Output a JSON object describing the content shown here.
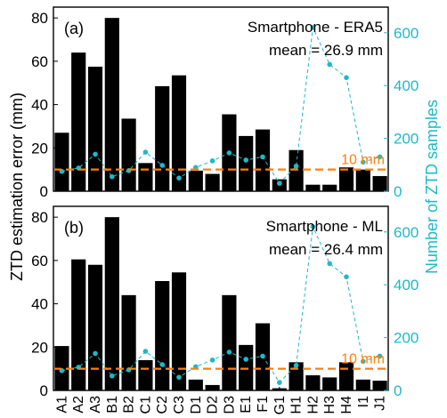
{
  "colors": {
    "bar": "#000000",
    "samples": "#20b8c8",
    "reference": "#ff7f0e"
  },
  "y_label": "ZTD estimation error (mm)",
  "y2_label": "Number of ZTD samples",
  "chart_data": [
    {
      "type": "bar",
      "panel_label": "(a)",
      "legend_title": "Smartphone - ERA5",
      "mean_text": "mean = 26.9 mm",
      "reference_label": "10 mm",
      "reference_value": 10,
      "categories": [
        "A1",
        "A2",
        "A3",
        "B1",
        "B2",
        "C1",
        "C2",
        "C3",
        "D1",
        "D2",
        "D3",
        "E1",
        "F1",
        "G1",
        "H1",
        "H2",
        "H3",
        "H4",
        "I1",
        "J1"
      ],
      "series": [
        {
          "axis": "left",
          "values": [
            27,
            64,
            57.5,
            80,
            33.5,
            13,
            48.5,
            53.5,
            9.5,
            8,
            35.5,
            25.5,
            28.5,
            5.5,
            19,
            3,
            3,
            11,
            10,
            7
          ]
        },
        {
          "axis": "right",
          "values": [
            75,
            88,
            140,
            55,
            78,
            148,
            98,
            50,
            90,
            115,
            145,
            118,
            130,
            30,
            95,
            620,
            480,
            430,
            110,
            130
          ]
        }
      ],
      "ylim": [
        0,
        85
      ],
      "y2lim": [
        0,
        697
      ],
      "yticks": [
        0,
        20,
        40,
        60,
        80
      ],
      "y2ticks": [
        0,
        200,
        400,
        600
      ]
    },
    {
      "type": "bar",
      "panel_label": "(b)",
      "legend_title": "Smartphone - ML",
      "mean_text": "mean = 26.4 mm",
      "reference_label": "10 mm",
      "reference_value": 10,
      "categories": [
        "A1",
        "A2",
        "A3",
        "B1",
        "B2",
        "C1",
        "C2",
        "C3",
        "D1",
        "D2",
        "D3",
        "E1",
        "F1",
        "G1",
        "H1",
        "H2",
        "H3",
        "H4",
        "I1",
        "J1"
      ],
      "series": [
        {
          "axis": "left",
          "values": [
            20.5,
            60.5,
            58,
            80,
            44,
            14,
            50.5,
            54.5,
            5,
            2.5,
            44,
            21,
            31,
            1,
            13,
            7,
            6,
            13,
            5,
            4.5
          ]
        },
        {
          "axis": "right",
          "values": [
            75,
            88,
            140,
            55,
            78,
            148,
            98,
            50,
            90,
            115,
            145,
            118,
            130,
            30,
            95,
            620,
            480,
            430,
            110,
            130
          ]
        }
      ],
      "ylim": [
        0,
        85
      ],
      "y2lim": [
        0,
        697
      ],
      "yticks": [
        0,
        20,
        40,
        60,
        80
      ],
      "y2ticks": [
        0,
        200,
        400,
        600
      ]
    }
  ]
}
